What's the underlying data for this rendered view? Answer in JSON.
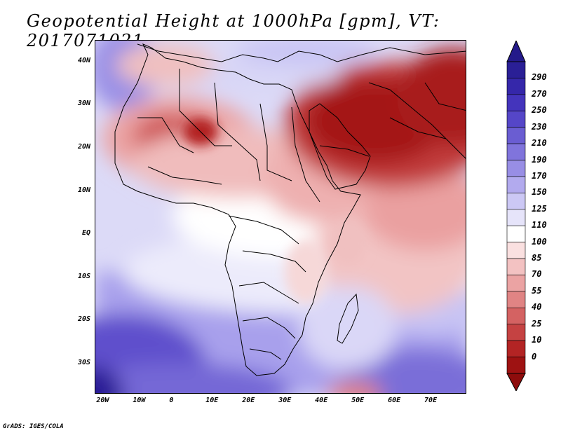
{
  "title": "Geopotential Height at 1000hPa [gpm], VT: 2017071021",
  "footer": "GrADS: IGES/COLA",
  "map": {
    "lat_labels": [
      "40N",
      "30N",
      "20N",
      "10N",
      "EQ",
      "10S",
      "20S",
      "30S"
    ],
    "lon_labels": [
      "20W",
      "10W",
      "0",
      "10E",
      "20E",
      "30E",
      "40E",
      "50E",
      "60E",
      "70E"
    ],
    "lat_values": [
      40,
      30,
      20,
      10,
      0,
      -10,
      -20,
      -30
    ],
    "lon_values": [
      -20,
      -10,
      0,
      10,
      20,
      30,
      40,
      50,
      60,
      70
    ],
    "extent": {
      "lon_min": -22,
      "lon_max": 80,
      "lat_min": -37,
      "lat_max": 45
    }
  },
  "colorbar": {
    "labels": [
      "290",
      "270",
      "250",
      "230",
      "210",
      "190",
      "170",
      "150",
      "125",
      "110",
      "100",
      "85",
      "70",
      "55",
      "40",
      "25",
      "10",
      "0"
    ],
    "colors": [
      "#2a1f96",
      "#3527aa",
      "#4434bc",
      "#5546c8",
      "#6a5dd2",
      "#8074dc",
      "#988ee5",
      "#b2aaee",
      "#ccc8f5",
      "#e6e4fa",
      "#ffffff",
      "#fae0e0",
      "#f3c2c2",
      "#eba3a3",
      "#e08484",
      "#d46262",
      "#c54242",
      "#b32424",
      "#9e1212"
    ]
  },
  "icons": {
    "colorbar_top": "triangle-up-icon",
    "colorbar_bottom": "triangle-down-icon"
  }
}
